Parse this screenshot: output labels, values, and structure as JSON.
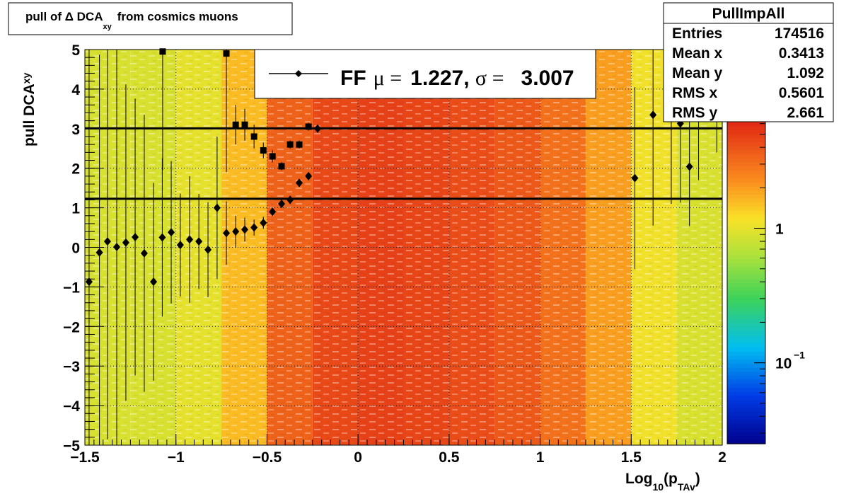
{
  "chart_data": {
    "type": "heatmap-profile",
    "title": {
      "main": "pull of Δ DCA",
      "sub": "xy",
      "rest": "from cosmics muons"
    },
    "x_label": {
      "a": "Log",
      "b": "10",
      "c": "(p",
      "d": "TAv",
      "e": ")"
    },
    "y_label": {
      "main": "pull DCA",
      "sub": "xy"
    },
    "xlim": [
      -1.5,
      2
    ],
    "ylim": [
      -5,
      5
    ],
    "xticks": [
      {
        "value": -1.5,
        "label": "−1.5"
      },
      {
        "value": -1,
        "label": "−1"
      },
      {
        "value": -0.5,
        "label": "−0.5"
      },
      0,
      0.5,
      1,
      1.5,
      2
    ],
    "yticks": [
      {
        "value": -5,
        "label": "−5"
      },
      {
        "value": -4,
        "label": "−4"
      },
      {
        "value": -3,
        "label": "−3"
      },
      {
        "value": -2,
        "label": "−2"
      },
      {
        "value": -1,
        "label": "−1"
      },
      0,
      1,
      2,
      3,
      4,
      5
    ],
    "grid": true,
    "zlog": true,
    "zlim": [
      0.025,
      6.2
    ],
    "zticks": [
      {
        "value": 1,
        "label": "1"
      },
      {
        "value": 0.1,
        "label": "10",
        "exponent": "−1"
      }
    ],
    "bins": [
      -1.5,
      -1.25,
      -1,
      -0.75,
      -0.5,
      -0.25,
      0,
      0.25,
      0.5,
      0.75,
      1,
      1.25,
      1.5,
      1.75,
      2
    ],
    "density": [
      0.9,
      0.9,
      1.0,
      1.6,
      3.5,
      4.5,
      4.8,
      4.6,
      4.3,
      3.8,
      3.0,
      2.0,
      1.1,
      0.9
    ],
    "series": [
      {
        "marker": "diamond",
        "color": "#000000",
        "x": [
          -1.477,
          -1.42,
          -1.376,
          -1.325,
          -1.275,
          -1.224,
          -1.174,
          -1.123,
          -1.075,
          -1.026,
          -0.976,
          -0.925,
          -0.874,
          -0.824,
          -0.774,
          -0.723,
          -0.672,
          -0.622,
          -0.571,
          -0.52,
          -0.47,
          -0.42,
          -0.373,
          -0.323,
          -0.272,
          -0.222,
          1.52,
          1.62,
          1.72,
          1.77,
          1.82,
          1.87,
          1.97
        ],
        "values": [
          -0.87,
          -0.13,
          0.15,
          0.01,
          0.12,
          0.26,
          -0.15,
          -0.87,
          0.25,
          0.38,
          0.06,
          0.2,
          0.15,
          -0.06,
          1.0,
          0.36,
          0.4,
          0.45,
          0.5,
          0.62,
          0.9,
          1.1,
          1.2,
          1.63,
          1.8,
          3.0,
          1.75,
          3.35,
          3.6,
          3.13,
          2.04,
          3.7,
          3.9
        ],
        "errors": [
          6,
          5,
          5,
          5,
          4,
          3.5,
          3.5,
          2.5,
          2,
          1.8,
          1.3,
          1.6,
          1.2,
          1.2,
          1.8,
          0.8,
          0.4,
          0.3,
          0.2,
          0.15,
          0.1,
          0.1,
          0.1,
          0.1,
          0.1,
          0.1,
          2.3,
          2.8,
          2.5,
          2,
          1.5,
          2,
          1.5
        ]
      },
      {
        "marker": "square",
        "color": "#000000",
        "x": [
          -1.073,
          -0.723,
          -0.672,
          -0.622,
          -0.571,
          -0.52,
          -0.47,
          -0.42,
          -0.373,
          -0.323,
          -0.272
        ],
        "values": [
          4.95,
          4.9,
          3.1,
          3.1,
          2.8,
          2.45,
          2.3,
          2.05,
          2.6,
          2.6,
          3.05
        ],
        "errors": [
          3,
          3,
          0.5,
          0.4,
          0.3,
          0.2,
          0.15,
          0.1,
          0.1,
          0.1,
          0.1
        ]
      }
    ],
    "fit": {
      "name": "FF",
      "mu_label": "μ =",
      "mu": 1.227,
      "sigma_label": "σ =",
      "sigma": 3.007
    },
    "stats": {
      "title": "PullImpAll",
      "rows": [
        [
          "Entries",
          "174516"
        ],
        [
          "Mean x",
          "0.3413"
        ],
        [
          "Mean y",
          "1.092"
        ],
        [
          "RMS x",
          "0.5601"
        ],
        [
          "RMS y",
          "2.661"
        ]
      ]
    }
  }
}
